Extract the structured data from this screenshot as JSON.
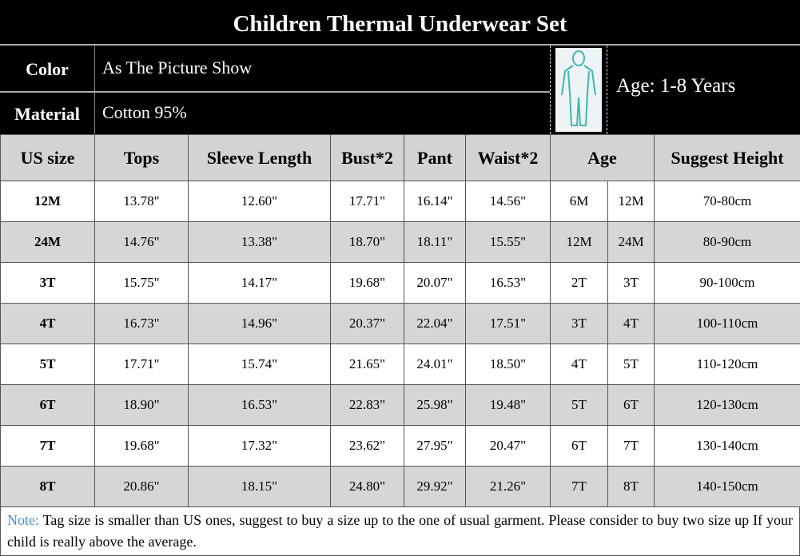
{
  "title": "Children Thermal Underwear Set",
  "color_label": "Color",
  "color_value": "As The Picture Show",
  "material_label": "Material",
  "material_value": "Cotton 95%",
  "age_range": "Age: 1-8 Years",
  "headers": [
    "US size",
    "Tops",
    "Sleeve Length",
    "Bust*2",
    "Pant",
    "Waist*2",
    "Age",
    "Suggest Height"
  ],
  "rows": [
    [
      "12M",
      "13.78\"",
      "12.60\"",
      "17.71\"",
      "16.14\"",
      "14.56\"",
      "6M",
      "12M",
      "70-80cm"
    ],
    [
      "24M",
      "14.76\"",
      "13.38\"",
      "18.70\"",
      "18.11\"",
      "15.55\"",
      "12M",
      "24M",
      "80-90cm"
    ],
    [
      "3T",
      "15.75\"",
      "14.17\"",
      "19.68\"",
      "20.07\"",
      "16.53\"",
      "2T",
      "3T",
      "90-100cm"
    ],
    [
      "4T",
      "16.73\"",
      "14.96\"",
      "20.37\"",
      "22.04\"",
      "17.51\"",
      "3T",
      "4T",
      "100-110cm"
    ],
    [
      "5T",
      "17.71\"",
      "15.74\"",
      "21.65\"",
      "24.01\"",
      "18.50\"",
      "4T",
      "5T",
      "110-120cm"
    ],
    [
      "6T",
      "18.90\"",
      "16.53\"",
      "22.83\"",
      "25.98\"",
      "19.48\"",
      "5T",
      "6T",
      "120-130cm"
    ],
    [
      "7T",
      "19.68\"",
      "17.32\"",
      "23.62\"",
      "27.95\"",
      "20.47\"",
      "6T",
      "7T",
      "130-140cm"
    ],
    [
      "8T",
      "20.86\"",
      "18.15\"",
      "24.80\"",
      "29.92\"",
      "21.26\"",
      "7T",
      "8T",
      "140-150cm"
    ]
  ],
  "note_label": "Note:",
  "note_text": " Tag size is smaller than US ones, suggest to buy a size up to the one of usual garment. Please consider to buy two size up If your child is really above the average.",
  "colors": {
    "note": "#4a8fd0",
    "figure": "#3fb8b0",
    "header_bg": "#d3d3d3"
  }
}
